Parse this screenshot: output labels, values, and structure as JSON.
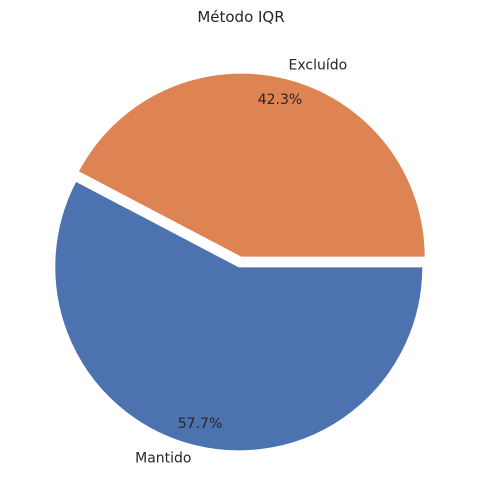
{
  "chart_data": {
    "type": "pie",
    "title": "Método IQR",
    "slices": [
      {
        "label": "Mantido",
        "value": 57.7,
        "pct_label": "57.7%",
        "color": "#4c72b0"
      },
      {
        "label": "Excluído",
        "value": 42.3,
        "pct_label": "42.3%",
        "color": "#dd8452"
      }
    ],
    "explode": true,
    "start_angle_deg": 0,
    "direction": "counterclockwise"
  }
}
